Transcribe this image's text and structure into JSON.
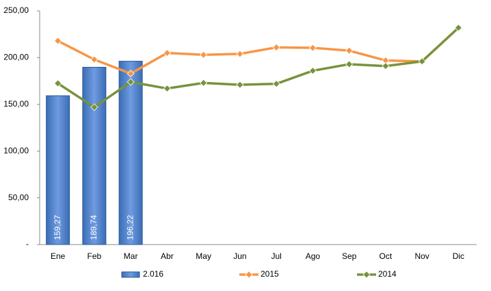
{
  "chart_data": {
    "type": "bar_line",
    "categories": [
      "Ene",
      "Feb",
      "Mar",
      "Abr",
      "May",
      "Jun",
      "Jul",
      "Ago",
      "Sep",
      "Oct",
      "Nov",
      "Dic"
    ],
    "series": [
      {
        "name": "2.016",
        "type": "bar",
        "color": "#4f81bd",
        "values": [
          159.27,
          189.74,
          196.22,
          null,
          null,
          null,
          null,
          null,
          null,
          null,
          null,
          null
        ],
        "value_labels": [
          "159,27",
          "189,74",
          "196,22",
          null,
          null,
          null,
          null,
          null,
          null,
          null,
          null,
          null
        ]
      },
      {
        "name": "2015",
        "type": "line",
        "color": "#f79646",
        "values": [
          218,
          198,
          183,
          205,
          203,
          204,
          211,
          210.5,
          207.5,
          197,
          196,
          232
        ]
      },
      {
        "name": "2014",
        "type": "line",
        "color": "#77933c",
        "values": [
          172.5,
          147,
          174,
          167,
          173,
          171,
          172,
          186,
          193,
          191,
          196,
          232
        ]
      }
    ],
    "ylim": [
      0,
      250
    ],
    "yticks": [
      {
        "value": 0,
        "label": "-"
      },
      {
        "value": 50,
        "label": "50,00"
      },
      {
        "value": 100,
        "label": "100,00"
      },
      {
        "value": 150,
        "label": "150,00"
      },
      {
        "value": 200,
        "label": "200,00"
      },
      {
        "value": 250,
        "label": "250,00"
      }
    ],
    "legend": "bottom"
  }
}
